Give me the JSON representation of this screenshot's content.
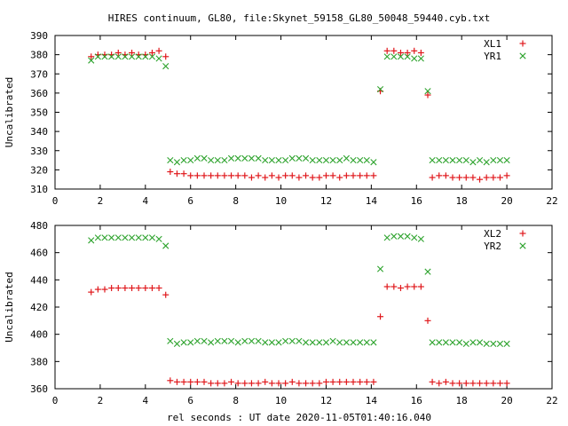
{
  "title": "HIRES continuum, GL80, file:Skynet_59158_GL80_50048_59440.cyb.txt",
  "xlabel": "rel seconds : UT date 2020-11-05T01:40:16.040",
  "colors": {
    "xl": "#e0181c",
    "yr": "#2ea32e"
  },
  "chart_data": [
    {
      "type": "scatter",
      "ylabel": "Uncalibrated",
      "xlim": [
        0,
        22
      ],
      "ylim": [
        310,
        390
      ],
      "xticks": [
        0,
        2,
        4,
        6,
        8,
        10,
        12,
        14,
        16,
        18,
        20,
        22
      ],
      "yticks": [
        310,
        320,
        330,
        340,
        350,
        360,
        370,
        380,
        390
      ],
      "legend_position": "top-right",
      "series": [
        {
          "name": "XL1",
          "marker": "plus",
          "x": [
            1.6,
            1.9,
            2.2,
            2.5,
            2.8,
            3.1,
            3.4,
            3.7,
            4.0,
            4.3,
            4.6,
            4.9,
            5.1,
            5.4,
            5.7,
            6.0,
            6.3,
            6.6,
            6.9,
            7.2,
            7.5,
            7.8,
            8.1,
            8.4,
            8.7,
            9.0,
            9.3,
            9.6,
            9.9,
            10.2,
            10.5,
            10.8,
            11.1,
            11.4,
            11.7,
            12.0,
            12.3,
            12.6,
            12.9,
            13.2,
            13.5,
            13.8,
            14.1,
            14.4,
            14.7,
            15.0,
            15.3,
            15.6,
            15.9,
            16.2,
            16.5,
            16.7,
            17.0,
            17.3,
            17.6,
            17.9,
            18.2,
            18.5,
            18.8,
            19.1,
            19.4,
            19.7,
            20.0
          ],
          "y": [
            379,
            380,
            380,
            380,
            381,
            380,
            381,
            380,
            380,
            381,
            382,
            379,
            319,
            318,
            318,
            317,
            317,
            317,
            317,
            317,
            317,
            317,
            317,
            317,
            316,
            317,
            316,
            317,
            316,
            317,
            317,
            316,
            317,
            316,
            316,
            317,
            317,
            316,
            317,
            317,
            317,
            317,
            317,
            361,
            382,
            382,
            381,
            381,
            382,
            381,
            359,
            316,
            317,
            317,
            316,
            316,
            316,
            316,
            315,
            316,
            316,
            316,
            317
          ]
        },
        {
          "name": "YR1",
          "marker": "cross",
          "x": [
            1.6,
            1.9,
            2.2,
            2.5,
            2.8,
            3.1,
            3.4,
            3.7,
            4.0,
            4.3,
            4.6,
            4.9,
            5.1,
            5.4,
            5.7,
            6.0,
            6.3,
            6.6,
            6.9,
            7.2,
            7.5,
            7.8,
            8.1,
            8.4,
            8.7,
            9.0,
            9.3,
            9.6,
            9.9,
            10.2,
            10.5,
            10.8,
            11.1,
            11.4,
            11.7,
            12.0,
            12.3,
            12.6,
            12.9,
            13.2,
            13.5,
            13.8,
            14.1,
            14.4,
            14.7,
            15.0,
            15.3,
            15.6,
            15.9,
            16.2,
            16.5,
            16.7,
            17.0,
            17.3,
            17.6,
            17.9,
            18.2,
            18.5,
            18.8,
            19.1,
            19.4,
            19.7,
            20.0
          ],
          "y": [
            377,
            379,
            379,
            379,
            379,
            379,
            379,
            379,
            379,
            379,
            378,
            374,
            325,
            324,
            325,
            325,
            326,
            326,
            325,
            325,
            325,
            326,
            326,
            326,
            326,
            326,
            325,
            325,
            325,
            325,
            326,
            326,
            326,
            325,
            325,
            325,
            325,
            325,
            326,
            325,
            325,
            325,
            324,
            362,
            379,
            379,
            379,
            379,
            378,
            378,
            361,
            325,
            325,
            325,
            325,
            325,
            325,
            324,
            325,
            324,
            325,
            325,
            325
          ]
        }
      ]
    },
    {
      "type": "scatter",
      "ylabel": "Uncalibrated",
      "xlim": [
        0,
        22
      ],
      "ylim": [
        360,
        480
      ],
      "xticks": [
        0,
        2,
        4,
        6,
        8,
        10,
        12,
        14,
        16,
        18,
        20,
        22
      ],
      "yticks": [
        360,
        380,
        400,
        420,
        440,
        460,
        480
      ],
      "legend_position": "top-right",
      "series": [
        {
          "name": "XL2",
          "marker": "plus",
          "x": [
            1.6,
            1.9,
            2.2,
            2.5,
            2.8,
            3.1,
            3.4,
            3.7,
            4.0,
            4.3,
            4.6,
            4.9,
            5.1,
            5.4,
            5.7,
            6.0,
            6.3,
            6.6,
            6.9,
            7.2,
            7.5,
            7.8,
            8.1,
            8.4,
            8.7,
            9.0,
            9.3,
            9.6,
            9.9,
            10.2,
            10.5,
            10.8,
            11.1,
            11.4,
            11.7,
            12.0,
            12.3,
            12.6,
            12.9,
            13.2,
            13.5,
            13.8,
            14.1,
            14.4,
            14.7,
            15.0,
            15.3,
            15.6,
            15.9,
            16.2,
            16.5,
            16.7,
            17.0,
            17.3,
            17.6,
            17.9,
            18.2,
            18.5,
            18.8,
            19.1,
            19.4,
            19.7,
            20.0
          ],
          "y": [
            431,
            433,
            433,
            434,
            434,
            434,
            434,
            434,
            434,
            434,
            434,
            429,
            366,
            365,
            365,
            365,
            365,
            365,
            364,
            364,
            364,
            365,
            364,
            364,
            364,
            364,
            365,
            364,
            364,
            364,
            365,
            364,
            364,
            364,
            364,
            365,
            365,
            365,
            365,
            365,
            365,
            365,
            365,
            413,
            435,
            435,
            434,
            435,
            435,
            435,
            410,
            365,
            364,
            365,
            364,
            364,
            364,
            364,
            364,
            364,
            364,
            364,
            364
          ]
        },
        {
          "name": "YR2",
          "marker": "cross",
          "x": [
            1.6,
            1.9,
            2.2,
            2.5,
            2.8,
            3.1,
            3.4,
            3.7,
            4.0,
            4.3,
            4.6,
            4.9,
            5.1,
            5.4,
            5.7,
            6.0,
            6.3,
            6.6,
            6.9,
            7.2,
            7.5,
            7.8,
            8.1,
            8.4,
            8.7,
            9.0,
            9.3,
            9.6,
            9.9,
            10.2,
            10.5,
            10.8,
            11.1,
            11.4,
            11.7,
            12.0,
            12.3,
            12.6,
            12.9,
            13.2,
            13.5,
            13.8,
            14.1,
            14.4,
            14.7,
            15.0,
            15.3,
            15.6,
            15.9,
            16.2,
            16.5,
            16.7,
            17.0,
            17.3,
            17.6,
            17.9,
            18.2,
            18.5,
            18.8,
            19.1,
            19.4,
            19.7,
            20.0
          ],
          "y": [
            469,
            471,
            471,
            471,
            471,
            471,
            471,
            471,
            471,
            471,
            470,
            465,
            395,
            393,
            394,
            394,
            395,
            395,
            394,
            395,
            395,
            395,
            394,
            395,
            395,
            395,
            394,
            394,
            394,
            395,
            395,
            395,
            394,
            394,
            394,
            394,
            395,
            394,
            394,
            394,
            394,
            394,
            394,
            448,
            471,
            472,
            472,
            472,
            471,
            470,
            446,
            394,
            394,
            394,
            394,
            394,
            393,
            394,
            394,
            393,
            393,
            393,
            393
          ]
        }
      ]
    }
  ]
}
